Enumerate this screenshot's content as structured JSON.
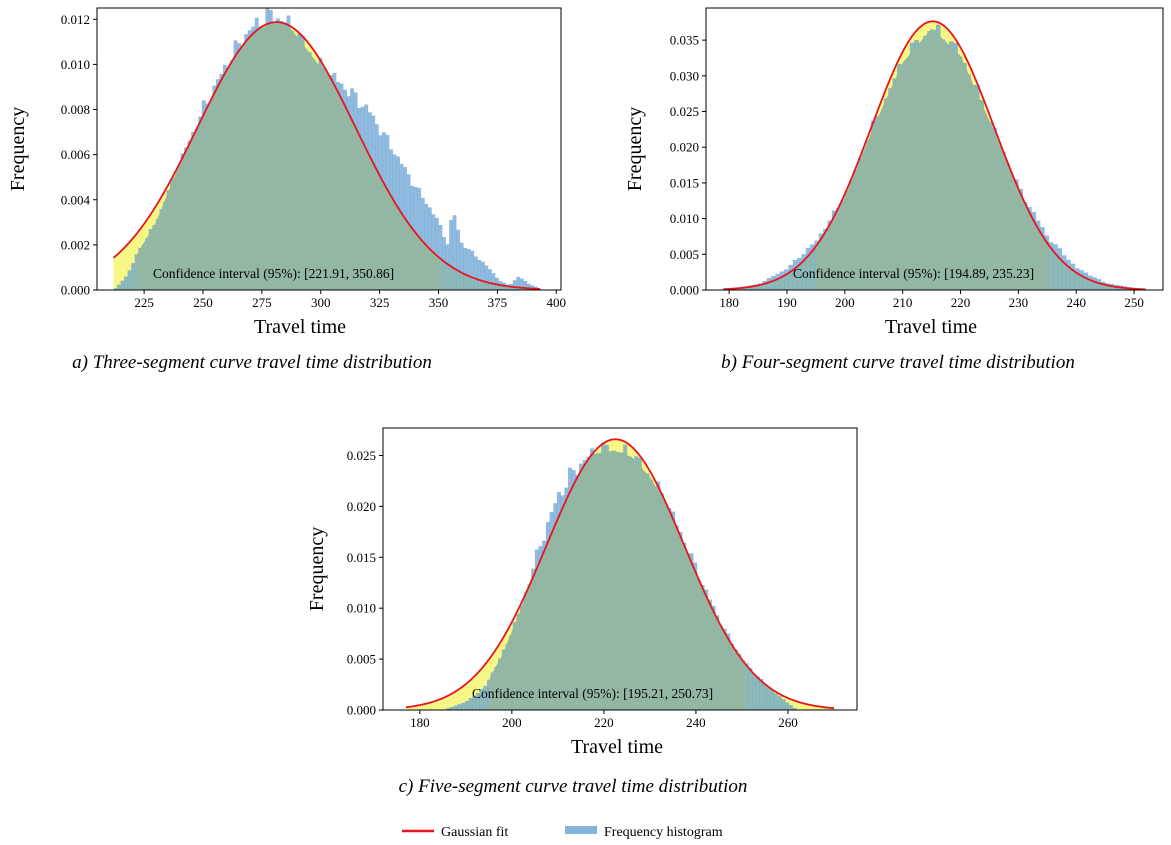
{
  "colors": {
    "histogram": "#5b9bd0",
    "fit_fill": "#f7f788",
    "fit_line": "#e8141e",
    "ci_overlay": "#94b7a4"
  },
  "legend": {
    "gaussian_fit": "Gaussian fit",
    "frequency_histogram": "Frequency histogram"
  },
  "chart_data": [
    {
      "type": "bar",
      "caption": "a) Three-segment curve travel time distribution",
      "xlabel": "Travel time",
      "ylabel": "Frequency",
      "xlim": [
        205,
        402
      ],
      "ylim": [
        0,
        0.0125
      ],
      "xticks": [
        225,
        250,
        275,
        300,
        325,
        350,
        375,
        400
      ],
      "yticks": [
        0.0,
        0.002,
        0.004,
        0.006,
        0.008,
        0.01,
        0.012
      ],
      "ytick_decimals": 3,
      "hist_range": [
        212,
        394
      ],
      "bin_width": 1.5,
      "gaussian": {
        "mean": 281.2,
        "std": 33.6
      },
      "confidence_interval": [
        221.91,
        350.86
      ],
      "ci_label": "Confidence interval (95%): [221.91, 350.86]",
      "hist_profile": [
        [
          212,
          0.0
        ],
        [
          214,
          0.0002
        ],
        [
          218,
          0.0007
        ],
        [
          222,
          0.0016
        ],
        [
          230,
          0.003
        ],
        [
          240,
          0.0056
        ],
        [
          250,
          0.008
        ],
        [
          260,
          0.01
        ],
        [
          268,
          0.0113
        ],
        [
          275,
          0.012
        ],
        [
          280,
          0.0122
        ],
        [
          286,
          0.0118
        ],
        [
          292,
          0.011
        ],
        [
          300,
          0.0099
        ],
        [
          310,
          0.009
        ],
        [
          320,
          0.008
        ],
        [
          326,
          0.007
        ],
        [
          332,
          0.006
        ],
        [
          340,
          0.0046
        ],
        [
          346,
          0.0037
        ],
        [
          350,
          0.003
        ],
        [
          354,
          0.002
        ],
        [
          356,
          0.0036
        ],
        [
          360,
          0.002
        ],
        [
          364,
          0.0017
        ],
        [
          368,
          0.0013
        ],
        [
          372,
          0.0009
        ],
        [
          376,
          0.0004
        ],
        [
          380,
          0.0002
        ],
        [
          384,
          0.0006
        ],
        [
          388,
          0.0003
        ],
        [
          394,
          0.0
        ]
      ],
      "gaussian_range": [
        212,
        393
      ]
    },
    {
      "type": "bar",
      "caption": "b) Four-segment curve travel time distribution",
      "xlabel": "Travel time",
      "ylabel": "Frequency",
      "xlim": [
        176,
        255
      ],
      "ylim": [
        0,
        0.0395
      ],
      "xticks": [
        180,
        190,
        200,
        210,
        220,
        230,
        240,
        250
      ],
      "yticks": [
        0.0,
        0.005,
        0.01,
        0.015,
        0.02,
        0.025,
        0.03,
        0.035
      ],
      "ytick_decimals": 3,
      "hist_range": [
        179,
        252
      ],
      "bin_width": 0.75,
      "gaussian": {
        "mean": 215.2,
        "std": 10.6
      },
      "hist_profile": [
        [
          179,
          0.0
        ],
        [
          185,
          0.0008
        ],
        [
          190,
          0.003
        ],
        [
          195,
          0.0068
        ],
        [
          200,
          0.013
        ],
        [
          205,
          0.023
        ],
        [
          210,
          0.032
        ],
        [
          215,
          0.0368
        ],
        [
          220,
          0.033
        ],
        [
          225,
          0.0238
        ],
        [
          230,
          0.0143
        ],
        [
          235,
          0.0075
        ],
        [
          240,
          0.0031
        ],
        [
          245,
          0.001
        ],
        [
          252,
          0.0
        ]
      ],
      "confidence_interval": [
        194.89,
        235.23
      ],
      "ci_label": "Confidence interval (95%): [194.89, 235.23]",
      "gaussian_range": [
        179,
        252
      ]
    },
    {
      "type": "bar",
      "caption": "c) Five-segment curve travel time distribution",
      "xlabel": "Travel time",
      "ylabel": "Frequency",
      "xlim": [
        172,
        275
      ],
      "ylim": [
        0,
        0.0277
      ],
      "xticks": [
        180,
        200,
        220,
        240,
        260
      ],
      "yticks": [
        0.0,
        0.005,
        0.01,
        0.015,
        0.02,
        0.025
      ],
      "ytick_decimals": 3,
      "hist_range": [
        185,
        262
      ],
      "bin_width": 0.8,
      "gaussian": {
        "mean": 222.5,
        "std": 15.0
      },
      "hist_profile": [
        [
          185,
          0.0
        ],
        [
          190,
          0.0008
        ],
        [
          194,
          0.0022
        ],
        [
          198,
          0.0055
        ],
        [
          202,
          0.01
        ],
        [
          206,
          0.016
        ],
        [
          210,
          0.021
        ],
        [
          214,
          0.0238
        ],
        [
          218,
          0.0253
        ],
        [
          222,
          0.0256
        ],
        [
          226,
          0.025
        ],
        [
          230,
          0.023
        ],
        [
          234,
          0.02
        ],
        [
          238,
          0.016
        ],
        [
          242,
          0.0118
        ],
        [
          246,
          0.008
        ],
        [
          250,
          0.005
        ],
        [
          254,
          0.003
        ],
        [
          258,
          0.0014
        ],
        [
          262,
          0.0
        ]
      ],
      "confidence_interval": [
        195.21,
        250.73
      ],
      "ci_label": "Confidence interval (95%): [195.21, 250.73]",
      "gaussian_range": [
        177,
        270
      ]
    }
  ]
}
